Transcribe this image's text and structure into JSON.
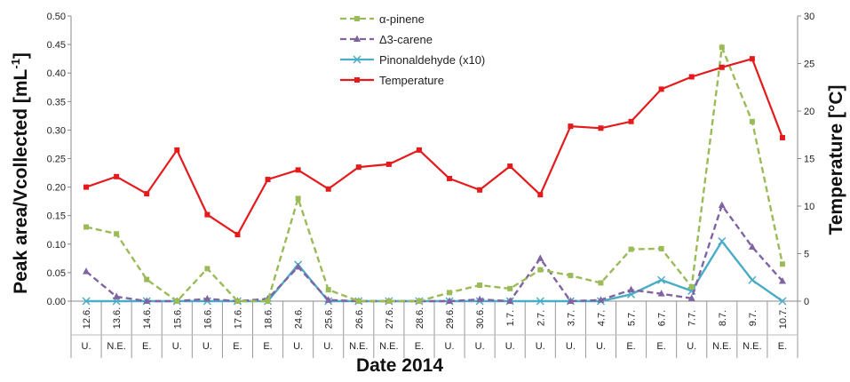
{
  "chart_data": {
    "type": "line",
    "xlabel": "Date 2014",
    "ylabel": "Peak area/Vcollected [mL",
    "ylabel_sup": "-1",
    "ylabel_close": "]",
    "y2label": "Temperature [°C]",
    "categories": [
      "12.6.",
      "13.6.",
      "14.6.",
      "15.6.",
      "16.6.",
      "17.6.",
      "18.6.",
      "24.6.",
      "25.6.",
      "26.6.",
      "27.6.",
      "28.6.",
      "29.6.",
      "30.6.",
      "1.7.",
      "2.7.",
      "3.7.",
      "4.7.",
      "5.7.",
      "6.7.",
      "7.7.",
      "8.7.",
      "9.7.",
      "10.7."
    ],
    "subcategories": [
      "U.",
      "N.E.",
      "E.",
      "U.",
      "U.",
      "E.",
      "E.",
      "U.",
      "U.",
      "N.E.",
      "N.E.",
      "E.",
      "U.",
      "U.",
      "U.",
      "U.",
      "U.",
      "U.",
      "E.",
      "E.",
      "U.",
      "N.E.",
      "N.E.",
      "E."
    ],
    "ylim": [
      0,
      0.5
    ],
    "yticks": [
      "0.00",
      "0.05",
      "0.10",
      "0.15",
      "0.20",
      "0.25",
      "0.30",
      "0.35",
      "0.40",
      "0.45",
      "0.50"
    ],
    "y2lim": [
      0,
      30
    ],
    "y2ticks": [
      "0",
      "5",
      "10",
      "15",
      "20",
      "25",
      "30"
    ],
    "grid": false,
    "legend_position": "top-center",
    "series": [
      {
        "name": "α-pinene",
        "axis": "left",
        "color": "#9BBB59",
        "style": "dashed",
        "marker": "square",
        "values": [
          0.13,
          0.118,
          0.038,
          0.0,
          0.057,
          0.0,
          0.0,
          0.18,
          0.02,
          0.0,
          0.0,
          0.0,
          0.015,
          0.028,
          0.022,
          0.055,
          0.045,
          0.032,
          0.091,
          0.092,
          0.025,
          0.445,
          0.315,
          0.065
        ]
      },
      {
        "name": "Δ3-carene",
        "axis": "left",
        "color": "#8064A2",
        "style": "dashed",
        "marker": "triangle",
        "values": [
          0.052,
          0.008,
          0.0,
          0.0,
          0.004,
          0.0,
          0.004,
          0.06,
          0.002,
          0.0,
          0.0,
          0.0,
          0.0,
          0.003,
          0.0,
          0.075,
          0.0,
          0.002,
          0.02,
          0.013,
          0.005,
          0.168,
          0.095,
          0.035
        ]
      },
      {
        "name": "Pinonaldehyde (x10)",
        "axis": "left",
        "color": "#4BACC6",
        "style": "solid",
        "marker": "x",
        "values": [
          0.0,
          0.0,
          0.0,
          0.0,
          0.0,
          0.0,
          0.0,
          0.064,
          0.0,
          0.0,
          0.0,
          0.0,
          0.0,
          0.0,
          0.0,
          0.0,
          0.0,
          0.0,
          0.012,
          0.037,
          0.018,
          0.105,
          0.037,
          0.0
        ]
      },
      {
        "name": "Temperature",
        "axis": "right",
        "color": "#E41A1C",
        "style": "solid",
        "marker": "square",
        "values": [
          12.0,
          13.1,
          11.3,
          15.9,
          9.1,
          7.0,
          12.8,
          13.8,
          11.8,
          14.1,
          14.4,
          15.9,
          12.9,
          11.7,
          14.2,
          11.2,
          18.4,
          18.2,
          18.9,
          22.3,
          23.6,
          24.6,
          25.5,
          17.2
        ]
      }
    ]
  }
}
